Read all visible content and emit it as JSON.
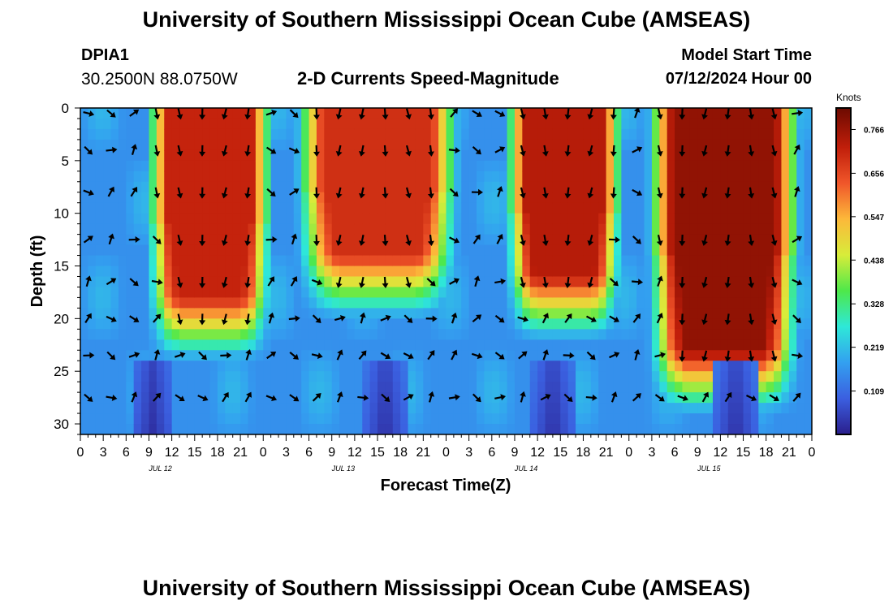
{
  "header": {
    "title": "University of Southern Mississippi Ocean Cube (AMSEAS)",
    "station_id": "DPIA1",
    "station_coords": "30.2500N  88.0750W",
    "plot_title": "2-D Currents Speed-Magnitude",
    "model_start_label": "Model Start Time",
    "model_start_value": "07/12/2024 Hour 00"
  },
  "footer": {
    "title": "University of Southern Mississippi Ocean Cube (AMSEAS)"
  },
  "chart_data": {
    "type": "heatmap",
    "xlabel": "Forecast Time(Z)",
    "ylabel": "Depth (ft)",
    "x_range_hours": [
      0,
      96
    ],
    "x_tick_labels": [
      "0",
      "3",
      "6",
      "9",
      "12",
      "15",
      "18",
      "21",
      "0",
      "3",
      "6",
      "9",
      "12",
      "15",
      "18",
      "21",
      "0",
      "3",
      "6",
      "9",
      "12",
      "15",
      "18",
      "21",
      "0",
      "3",
      "6",
      "9",
      "12",
      "15",
      "18",
      "21",
      "0"
    ],
    "date_labels": [
      {
        "label": "JUL 12",
        "hour": 10.5
      },
      {
        "label": "JUL 13",
        "hour": 34.5
      },
      {
        "label": "JUL 14",
        "hour": 58.5
      },
      {
        "label": "JUL 15",
        "hour": 82.5
      }
    ],
    "y_range_ft": [
      0,
      31
    ],
    "y_ticks": [
      0,
      5,
      10,
      15,
      20,
      25,
      30
    ],
    "colorbar": {
      "unit_label": "Knots",
      "min": 0,
      "max": 0.82,
      "tick_labels": [
        "0.766",
        "0.656",
        "0.547",
        "0.438",
        "0.328",
        "0.219",
        "0.109"
      ],
      "tick_values": [
        0.766,
        0.656,
        0.547,
        0.438,
        0.328,
        0.219,
        0.109
      ],
      "colors": [
        "#2a1e8c",
        "#3b5fe0",
        "#33a0f0",
        "#2ee8d8",
        "#4ee84a",
        "#d8ec3a",
        "#fcb83a",
        "#f0562a",
        "#c01e0a",
        "#6c0a00"
      ]
    },
    "arrow_depth_rows_ft": [
      0.5,
      4,
      8,
      12.5,
      16.5,
      20,
      23.5,
      27.5
    ],
    "high_speed_regions": [
      {
        "from_hour": 10,
        "to_hour": 24,
        "depth_top_ft": 0,
        "depth_bottom_ft": 18,
        "peak_knots": 0.72
      },
      {
        "from_hour": 30,
        "to_hour": 48,
        "depth_top_ft": 0,
        "depth_bottom_ft": 14,
        "peak_knots": 0.7
      },
      {
        "from_hour": 57,
        "to_hour": 70,
        "depth_top_ft": 0,
        "depth_bottom_ft": 16,
        "peak_knots": 0.74
      },
      {
        "from_hour": 76,
        "to_hour": 93,
        "depth_top_ft": 0,
        "depth_bottom_ft": 23,
        "peak_knots": 0.78
      }
    ]
  }
}
